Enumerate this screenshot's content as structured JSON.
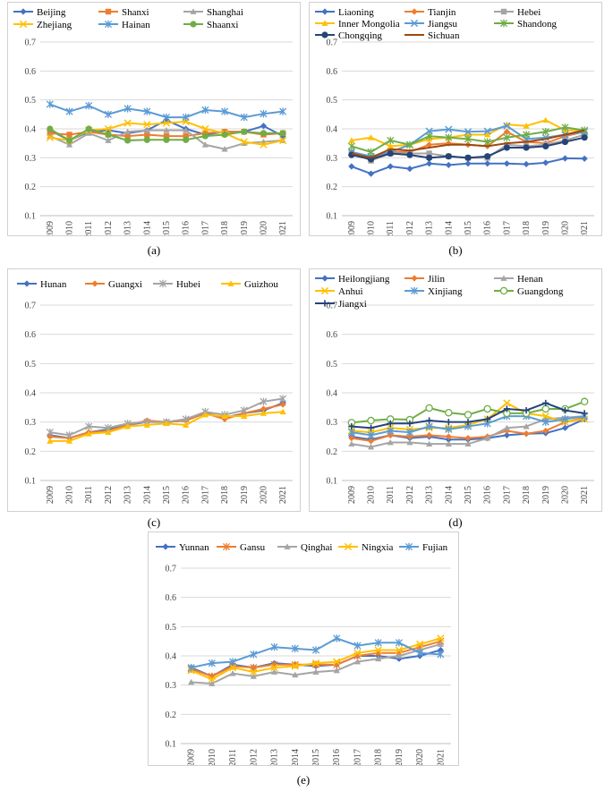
{
  "captions": [
    "(a)",
    "(b)",
    "(c)",
    "(d)",
    "(e)"
  ],
  "chart_data": [
    {
      "type": "line",
      "x": [
        "2009",
        "2010",
        "2011",
        "2012",
        "2013",
        "2014",
        "2015",
        "2016",
        "2017",
        "2018",
        "2019",
        "2020",
        "2021"
      ],
      "ylim": [
        0.1,
        0.7
      ],
      "yticks": [
        "0.1",
        "0.2",
        "0.3",
        "0.4",
        "0.5",
        "0.6",
        "0.7"
      ],
      "legend_placement": "top",
      "series": [
        {
          "name": "Beijing",
          "color": "#4472C4",
          "marker": "diamond",
          "values": [
            0.395,
            0.36,
            0.39,
            0.395,
            0.385,
            0.395,
            0.43,
            0.4,
            0.38,
            0.39,
            0.39,
            0.41,
            0.375
          ]
        },
        {
          "name": "Shanxi",
          "color": "#ED7D31",
          "marker": "square",
          "values": [
            0.385,
            0.38,
            0.39,
            0.38,
            0.375,
            0.38,
            0.375,
            0.375,
            0.385,
            0.39,
            0.39,
            0.38,
            0.385
          ]
        },
        {
          "name": "Shanghai",
          "color": "#A5A5A5",
          "marker": "triangle",
          "values": [
            0.375,
            0.345,
            0.385,
            0.36,
            0.39,
            0.395,
            0.395,
            0.395,
            0.345,
            0.33,
            0.35,
            0.355,
            0.36
          ]
        },
        {
          "name": "Zhejiang",
          "color": "#FFC000",
          "marker": "x",
          "values": [
            0.37,
            0.36,
            0.395,
            0.4,
            0.42,
            0.415,
            0.42,
            0.425,
            0.4,
            0.385,
            0.355,
            0.345,
            0.36
          ]
        },
        {
          "name": "Hainan",
          "color": "#5B9BD5",
          "marker": "star",
          "values": [
            0.485,
            0.46,
            0.48,
            0.45,
            0.47,
            0.46,
            0.44,
            0.44,
            0.465,
            0.46,
            0.44,
            0.452,
            0.46
          ]
        },
        {
          "name": "Shaanxi",
          "color": "#70AD47",
          "marker": "circle",
          "values": [
            0.4,
            0.36,
            0.4,
            0.38,
            0.36,
            0.362,
            0.362,
            0.362,
            0.375,
            0.38,
            0.39,
            0.385,
            0.385
          ]
        }
      ]
    },
    {
      "type": "line",
      "x": [
        "2009",
        "2010",
        "2011",
        "2012",
        "2013",
        "2014",
        "2015",
        "2016",
        "2017",
        "2018",
        "2019",
        "2020",
        "2021"
      ],
      "ylim": [
        0.1,
        0.7
      ],
      "yticks": [
        "0.1",
        "0.2",
        "0.3",
        "0.4",
        "0.5",
        "0.6",
        "0.7"
      ],
      "legend_placement": "top",
      "series": [
        {
          "name": "Liaoning",
          "color": "#4472C4",
          "marker": "diamond",
          "values": [
            0.27,
            0.245,
            0.27,
            0.262,
            0.28,
            0.275,
            0.28,
            0.28,
            0.28,
            0.278,
            0.283,
            0.298,
            0.297
          ]
        },
        {
          "name": "Tianjin",
          "color": "#ED7D31",
          "marker": "diamond",
          "values": [
            0.32,
            0.3,
            0.32,
            0.32,
            0.345,
            0.35,
            0.345,
            0.34,
            0.39,
            0.355,
            0.35,
            0.375,
            0.39
          ]
        },
        {
          "name": "Hebei",
          "color": "#A5A5A5",
          "marker": "square",
          "values": [
            0.32,
            0.29,
            0.315,
            0.315,
            0.315,
            0.305,
            0.3,
            0.3,
            0.345,
            0.34,
            0.345,
            0.36,
            0.38
          ]
        },
        {
          "name": "Inner Mongolia",
          "color": "#FFC000",
          "marker": "triangle",
          "values": [
            0.36,
            0.37,
            0.34,
            0.345,
            0.365,
            0.37,
            0.38,
            0.38,
            0.415,
            0.41,
            0.43,
            0.395,
            0.395
          ]
        },
        {
          "name": "Jiangsu",
          "color": "#5B9BD5",
          "marker": "x",
          "values": [
            0.32,
            0.305,
            0.32,
            0.345,
            0.392,
            0.398,
            0.39,
            0.392,
            0.41,
            0.365,
            0.37,
            0.38,
            0.39
          ]
        },
        {
          "name": "Shandong",
          "color": "#70AD47",
          "marker": "star",
          "values": [
            0.34,
            0.32,
            0.36,
            0.345,
            0.375,
            0.37,
            0.365,
            0.355,
            0.37,
            0.38,
            0.39,
            0.405,
            0.395
          ]
        },
        {
          "name": "Chongqing",
          "color": "#264478",
          "marker": "circle",
          "values": [
            0.31,
            0.295,
            0.315,
            0.31,
            0.3,
            0.305,
            0.3,
            0.305,
            0.335,
            0.335,
            0.34,
            0.355,
            0.37
          ]
        },
        {
          "name": "Sichuan",
          "color": "#9E480E",
          "marker": "none",
          "values": [
            0.315,
            0.3,
            0.33,
            0.325,
            0.335,
            0.345,
            0.345,
            0.34,
            0.35,
            0.355,
            0.365,
            0.38,
            0.395
          ]
        }
      ]
    },
    {
      "type": "line",
      "x": [
        "2009",
        "2010",
        "2011",
        "2012",
        "2013",
        "2014",
        "2015",
        "2016",
        "2017",
        "2018",
        "2019",
        "2020",
        "2021"
      ],
      "ylim": [
        0.1,
        0.7
      ],
      "yticks": [
        "0.1",
        "0.2",
        "0.3",
        "0.4",
        "0.5",
        "0.6",
        "0.7"
      ],
      "legend_placement": "top",
      "series": [
        {
          "name": "Hunan",
          "color": "#4472C4",
          "marker": "diamond",
          "values": [
            0.255,
            0.245,
            0.265,
            0.275,
            0.29,
            0.3,
            0.3,
            0.305,
            0.33,
            0.315,
            0.33,
            0.34,
            0.365
          ]
        },
        {
          "name": "Guangxi",
          "color": "#ED7D31",
          "marker": "diamond",
          "values": [
            0.25,
            0.245,
            0.265,
            0.27,
            0.29,
            0.305,
            0.3,
            0.305,
            0.33,
            0.31,
            0.33,
            0.345,
            0.36
          ]
        },
        {
          "name": "Hubei",
          "color": "#A5A5A5",
          "marker": "star",
          "values": [
            0.265,
            0.255,
            0.285,
            0.28,
            0.295,
            0.3,
            0.3,
            0.31,
            0.335,
            0.325,
            0.34,
            0.37,
            0.38
          ]
        },
        {
          "name": "Guizhou",
          "color": "#FFC000",
          "marker": "triangle",
          "values": [
            0.235,
            0.235,
            0.26,
            0.265,
            0.285,
            0.29,
            0.295,
            0.29,
            0.325,
            0.32,
            0.32,
            0.33,
            0.335
          ]
        }
      ]
    },
    {
      "type": "line",
      "x": [
        "2009",
        "2010",
        "2011",
        "2012",
        "2013",
        "2014",
        "2015",
        "2016",
        "2017",
        "2018",
        "2019",
        "2020",
        "2021"
      ],
      "ylim": [
        0.1,
        0.7
      ],
      "yticks": [
        "0.1",
        "0.2",
        "0.3",
        "0.4",
        "0.5",
        "0.6",
        "0.7"
      ],
      "legend_placement": "top",
      "series": [
        {
          "name": "Heilongjiang",
          "color": "#4472C4",
          "marker": "diamond",
          "values": [
            0.25,
            0.24,
            0.255,
            0.245,
            0.25,
            0.24,
            0.24,
            0.245,
            0.255,
            0.26,
            0.262,
            0.28,
            0.31
          ]
        },
        {
          "name": "Jilin",
          "color": "#ED7D31",
          "marker": "diamond",
          "values": [
            0.245,
            0.235,
            0.255,
            0.25,
            0.255,
            0.25,
            0.245,
            0.25,
            0.27,
            0.26,
            0.27,
            0.3,
            0.315
          ]
        },
        {
          "name": "Henan",
          "color": "#A5A5A5",
          "marker": "triangle",
          "values": [
            0.225,
            0.215,
            0.23,
            0.23,
            0.225,
            0.225,
            0.225,
            0.245,
            0.28,
            0.285,
            0.31,
            0.315,
            0.32
          ]
        },
        {
          "name": "Anhui",
          "color": "#FFC000",
          "marker": "x",
          "values": [
            0.27,
            0.265,
            0.28,
            0.275,
            0.28,
            0.28,
            0.29,
            0.31,
            0.365,
            0.33,
            0.32,
            0.3,
            0.31
          ]
        },
        {
          "name": "Xinjiang",
          "color": "#5B9BD5",
          "marker": "star",
          "values": [
            0.265,
            0.255,
            0.27,
            0.265,
            0.285,
            0.275,
            0.285,
            0.295,
            0.32,
            0.32,
            0.3,
            0.31,
            0.32
          ]
        },
        {
          "name": "Guangdong",
          "color": "#70AD47",
          "marker": "circle-open",
          "values": [
            0.298,
            0.305,
            0.31,
            0.308,
            0.348,
            0.332,
            0.325,
            0.345,
            0.33,
            0.33,
            0.345,
            0.345,
            0.37
          ]
        },
        {
          "name": "Jiangxi",
          "color": "#264478",
          "marker": "plus",
          "values": [
            0.285,
            0.28,
            0.295,
            0.295,
            0.305,
            0.3,
            0.3,
            0.31,
            0.345,
            0.34,
            0.365,
            0.34,
            0.33
          ]
        }
      ]
    },
    {
      "type": "line",
      "x": [
        "2009",
        "2010",
        "2011",
        "2012",
        "2013",
        "2014",
        "2015",
        "2016",
        "2017",
        "2018",
        "2019",
        "2020",
        "2021"
      ],
      "ylim": [
        0.1,
        0.7
      ],
      "yticks": [
        "0.1",
        "0.2",
        "0.3",
        "0.4",
        "0.5",
        "0.6",
        "0.7"
      ],
      "legend_placement": "top",
      "series": [
        {
          "name": "Yunnan",
          "color": "#4472C4",
          "marker": "diamond",
          "values": [
            0.36,
            0.33,
            0.37,
            0.36,
            0.375,
            0.37,
            0.365,
            0.37,
            0.4,
            0.4,
            0.39,
            0.4,
            0.42
          ]
        },
        {
          "name": "Gansu",
          "color": "#ED7D31",
          "marker": "star",
          "values": [
            0.355,
            0.33,
            0.365,
            0.36,
            0.37,
            0.37,
            0.37,
            0.37,
            0.4,
            0.41,
            0.41,
            0.43,
            0.45
          ]
        },
        {
          "name": "Qinghai",
          "color": "#A5A5A5",
          "marker": "triangle",
          "values": [
            0.31,
            0.305,
            0.34,
            0.33,
            0.345,
            0.335,
            0.345,
            0.35,
            0.38,
            0.39,
            0.4,
            0.42,
            0.44
          ]
        },
        {
          "name": "Ningxia",
          "color": "#FFC000",
          "marker": "x",
          "values": [
            0.35,
            0.32,
            0.36,
            0.345,
            0.36,
            0.365,
            0.375,
            0.38,
            0.41,
            0.42,
            0.42,
            0.44,
            0.46
          ]
        },
        {
          "name": "Fujian",
          "color": "#5B9BD5",
          "marker": "star",
          "values": [
            0.36,
            0.375,
            0.38,
            0.405,
            0.43,
            0.425,
            0.42,
            0.46,
            0.435,
            0.445,
            0.445,
            0.41,
            0.405
          ]
        }
      ]
    }
  ]
}
